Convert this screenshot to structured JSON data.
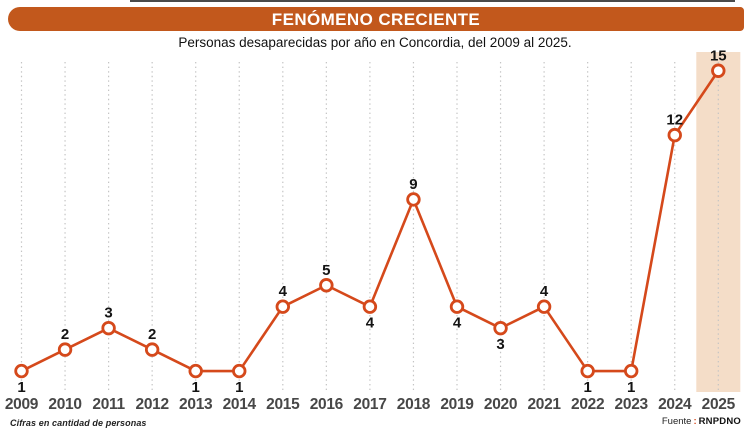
{
  "header": {
    "title": "FENÓMENO CRECIENTE",
    "subtitle": "Personas desaparecidas por año en Concordia, del 2009 al 2025."
  },
  "footer": {
    "note": "Cifras en cantidad de personas",
    "source_label": "Fuente",
    "source_separator": ":",
    "source_name": "RNPDNO"
  },
  "colors": {
    "banner_bg": "#c2581c",
    "banner_text": "#ffffff",
    "line": "#d5491b",
    "marker_fill": "#ffffff",
    "gridline": "#c4c4c4",
    "highlight_band": "#f4ddc8",
    "value_label": "#141414",
    "year_label": "#474747",
    "top_rule": "#4a4a4a"
  },
  "chart_data": {
    "type": "line",
    "title": "FENÓMENO CRECIENTE",
    "subtitle": "Personas desaparecidas por año en Concordia, del 2009 al 2025.",
    "categories": [
      "2009",
      "2010",
      "2011",
      "2012",
      "2013",
      "2014",
      "2015",
      "2016",
      "2017",
      "2018",
      "2019",
      "2020",
      "2021",
      "2022",
      "2023",
      "2024",
      "2025"
    ],
    "values": [
      1,
      2,
      3,
      2,
      1,
      1,
      4,
      5,
      4,
      9,
      4,
      3,
      4,
      1,
      1,
      12,
      15
    ],
    "label_positions": [
      "below",
      "above",
      "above",
      "above",
      "below",
      "below",
      "above",
      "above",
      "below",
      "above",
      "below",
      "below",
      "above",
      "below",
      "below",
      "above",
      "above"
    ],
    "highlight_category": "2025",
    "ylim": [
      0,
      15.5
    ],
    "grid": "vertical-dotted",
    "legend": "none",
    "unit_note": "Cifras en cantidad de personas",
    "source": "RNPDNO"
  }
}
